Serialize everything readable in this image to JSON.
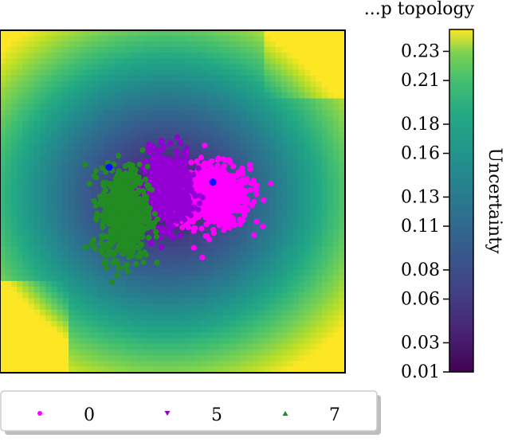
{
  "chart_data": {
    "type": "scatter",
    "title": "...p topology",
    "background": "uncertainty heatmap",
    "colorbar": {
      "label": "Uncertainty",
      "min": 0.01,
      "max": 0.245,
      "ticks": [
        "0.01",
        "0.03",
        "0.06",
        "0.08",
        "0.11",
        "0.13",
        "0.16",
        "0.18",
        "0.21",
        "0.23"
      ],
      "tick_values": [
        0.01,
        0.03,
        0.06,
        0.08,
        0.11,
        0.13,
        0.16,
        0.18,
        0.21,
        0.23
      ],
      "colormap": "viridis"
    },
    "series": [
      {
        "name": "0",
        "color": "#ff00ff",
        "marker": "circle",
        "center": [
          0.35,
          0.05
        ],
        "spread": [
          0.38,
          0.32
        ],
        "n": 800
      },
      {
        "name": "5",
        "color": "#9400d3",
        "marker": "triangle-down",
        "center": [
          -0.05,
          0.1
        ],
        "spread": [
          0.25,
          0.38
        ],
        "n": 600
      },
      {
        "name": "7",
        "color": "#228b22",
        "marker": "triangle-up",
        "center": [
          -0.42,
          -0.1
        ],
        "spread": [
          0.24,
          0.48
        ],
        "n": 700
      }
    ],
    "highlight_points": [
      {
        "x": -0.55,
        "y": 0.3,
        "color": "#1010ff"
      },
      {
        "x": 0.35,
        "y": 0.17,
        "color": "#1010ff"
      }
    ],
    "legend": {
      "entries": [
        "0",
        "5",
        "7"
      ],
      "placement": "bottom"
    },
    "grid": false
  }
}
